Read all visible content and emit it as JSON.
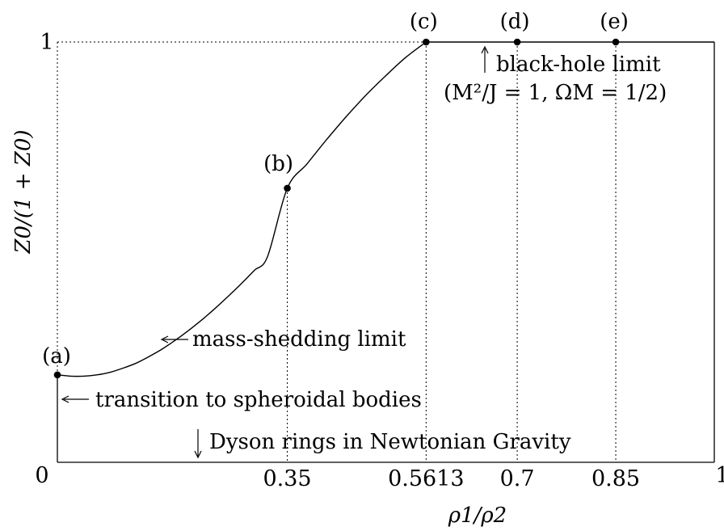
{
  "chart_data": {
    "type": "line",
    "xlabel": "ρ1/ρ2",
    "ylabel": "Z0/(1 + Z0)",
    "xlim": [
      0,
      1
    ],
    "ylim": [
      0,
      1
    ],
    "x_ticks": [
      {
        "value": 0,
        "label": "0"
      },
      {
        "value": 0.35,
        "label": "0.35"
      },
      {
        "value": 0.5613,
        "label": "0.5613"
      },
      {
        "value": 0.7,
        "label": "0.7"
      },
      {
        "value": 0.85,
        "label": "0.85"
      },
      {
        "value": 1,
        "label": "1"
      }
    ],
    "y_ticks": [
      {
        "value": 0,
        "label": ""
      },
      {
        "value": 1,
        "label": "1"
      }
    ],
    "series": [
      {
        "x": [
          0,
          0.02,
          0.04,
          0.06,
          0.08,
          0.1,
          0.12,
          0.14,
          0.16,
          0.18,
          0.2,
          0.22,
          0.24,
          0.26,
          0.28,
          0.3,
          0.32,
          0.35,
          0.38,
          0.41,
          0.44,
          0.47,
          0.5,
          0.53,
          0.5613
        ],
        "y": [
          0.208,
          0.205,
          0.205,
          0.208,
          0.214,
          0.224,
          0.236,
          0.252,
          0.27,
          0.291,
          0.314,
          0.339,
          0.366,
          0.395,
          0.425,
          0.457,
          0.49,
          0.652,
          0.71,
          0.768,
          0.823,
          0.874,
          0.92,
          0.963,
          1.0
        ]
      },
      {
        "x": [
          0.5613,
          1
        ],
        "y": [
          1,
          1
        ]
      }
    ],
    "points": [
      {
        "label": "(a)",
        "x": 0,
        "y": 0.208
      },
      {
        "label": "(b)",
        "x": 0.35,
        "y": 0.652
      },
      {
        "label": "(c)",
        "x": 0.5613,
        "y": 1
      },
      {
        "label": "(d)",
        "x": 0.7,
        "y": 1
      },
      {
        "label": "(e)",
        "x": 0.85,
        "y": 1
      }
    ],
    "annotations": {
      "mass_shedding": "mass-shedding limit",
      "transition": "transition to spheroidal bodies",
      "dyson": "Dyson rings in Newtonian Gravity",
      "black_hole_1": "black-hole limit",
      "black_hole_2": "(M²/J = 1, ΩM = 1/2)"
    },
    "x_origin_label": "0",
    "grid": false
  }
}
